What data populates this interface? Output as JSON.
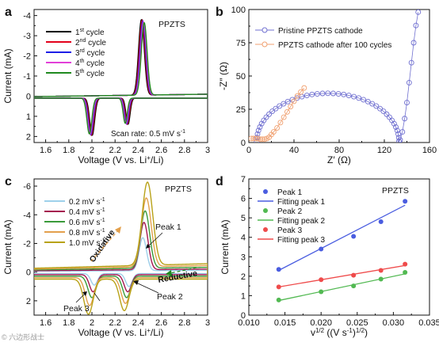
{
  "chart_data": [
    {
      "panel": "a",
      "type": "line",
      "xlabel": "Voltage (V vs. Li⁺/Li)",
      "ylabel": "Current (mA)",
      "xlim": [
        1.5,
        3.0
      ],
      "ylim": [
        2.3,
        -4.3
      ],
      "y_inverted": true,
      "xticks": [
        1.6,
        1.8,
        2.0,
        2.2,
        2.4,
        2.6,
        2.8,
        3.0
      ],
      "yticks": [
        -4,
        -3,
        -2,
        -1,
        0,
        1,
        2
      ],
      "tag": "PPZTS",
      "note": "Scan rate: 0.5 mV s⁻¹",
      "legend_position": "upper-left",
      "series": [
        {
          "name": "1st cycle",
          "name_base": "1",
          "name_sup": "st",
          "name_rest": " cycle",
          "color": "#000000"
        },
        {
          "name": "2nd cycle",
          "name_base": "2",
          "name_sup": "nd",
          "name_rest": " cycle",
          "color": "#e3001b"
        },
        {
          "name": "3rd cycle",
          "name_base": "3",
          "name_sup": "rd",
          "name_rest": " cycle",
          "color": "#1e1ee6"
        },
        {
          "name": "4th cycle",
          "name_base": "4",
          "name_sup": "th",
          "name_rest": " cycle",
          "color": "#e23fd8"
        },
        {
          "name": "5th cycle",
          "name_base": "5",
          "name_sup": "th",
          "name_rest": " cycle",
          "color": "#1f8a1f"
        }
      ],
      "cv_shape": {
        "base_charge": -0.05,
        "base_discharge": 0.1,
        "anodic_peaks": [
          {
            "x": 2.44,
            "y": -3.75,
            "w": 0.035
          }
        ],
        "cathodic_peaks": [
          {
            "x": 1.99,
            "y": 1.85,
            "w": 0.03
          },
          {
            "x": 2.3,
            "y": 1.3,
            "w": 0.025
          }
        ]
      }
    },
    {
      "panel": "b",
      "type": "scatter",
      "xlabel": "Z′ (Ω)",
      "ylabel": "-Z″ (Ω)",
      "xlim": [
        0,
        160
      ],
      "ylim": [
        0,
        100
      ],
      "xticks": [
        0,
        40,
        80,
        120,
        160
      ],
      "yticks": [
        0,
        25,
        50,
        75,
        100
      ],
      "legend_position": "upper-left",
      "series": [
        {
          "name": "Pristine PPZTS cathode",
          "color": "#7070d0",
          "semicircle": {
            "center": 70,
            "radius": 63,
            "height": 36,
            "n": 42
          },
          "tail": [
            [
              134,
              2
            ],
            [
              136,
              8
            ],
            [
              138,
              18
            ],
            [
              140,
              30
            ],
            [
              142,
              45
            ],
            [
              144,
              60
            ],
            [
              146,
              75
            ],
            [
              148,
              88
            ],
            [
              150,
              98
            ]
          ]
        },
        {
          "name": "PPZTS cathode after 100 cycles",
          "color": "#f0a070",
          "points": [
            [
              2,
              3
            ],
            [
              4,
              3
            ],
            [
              6,
              3
            ],
            [
              8,
              3
            ],
            [
              10,
              2.5
            ],
            [
              12,
              2.5
            ],
            [
              14,
              2.5
            ],
            [
              16,
              3
            ],
            [
              18,
              4
            ],
            [
              20,
              6
            ],
            [
              22,
              8
            ],
            [
              25,
              11
            ],
            [
              28,
              15
            ],
            [
              31,
              19
            ],
            [
              34,
              23
            ],
            [
              37,
              27
            ],
            [
              40,
              31
            ],
            [
              43,
              35
            ],
            [
              46,
              38
            ],
            [
              49,
              41
            ]
          ]
        }
      ]
    },
    {
      "panel": "c",
      "type": "line",
      "xlabel": "Voltage (V vs. Li⁺/Li)",
      "ylabel": "Current (mA)",
      "xlim": [
        1.5,
        3.0
      ],
      "ylim": [
        3.0,
        -6.5
      ],
      "y_inverted": true,
      "xticks": [
        1.6,
        1.8,
        2.0,
        2.2,
        2.4,
        2.6,
        2.8,
        3.0
      ],
      "yticks": [
        -6,
        -4,
        -2,
        0,
        2
      ],
      "tag": "PPZTS",
      "legend_position": "upper-left",
      "series": [
        {
          "name": "0.2 mV s⁻¹",
          "color": "#9ed0ea",
          "base": 0.15,
          "anodic": [
            {
              "x": 2.44,
              "y": -2.3
            }
          ],
          "cathodic": [
            {
              "x": 2.02,
              "y": 0.8
            },
            {
              "x": 2.32,
              "y": 0.9
            }
          ]
        },
        {
          "name": "0.4 mV s⁻¹",
          "color": "#a5174f",
          "base": 0.25,
          "anodic": [
            {
              "x": 2.45,
              "y": -3.3
            }
          ],
          "cathodic": [
            {
              "x": 2.01,
              "y": 1.2
            },
            {
              "x": 2.31,
              "y": 1.2
            }
          ]
        },
        {
          "name": "0.6 mV s⁻¹",
          "color": "#3a9a3a",
          "base": 0.4,
          "anodic": [
            {
              "x": 2.46,
              "y": -4.0
            }
          ],
          "cathodic": [
            {
              "x": 2.0,
              "y": 1.5
            },
            {
              "x": 2.3,
              "y": 1.5
            }
          ]
        },
        {
          "name": "0.8 mV s⁻¹",
          "color": "#e3a04c",
          "base": 0.55,
          "anodic": [
            {
              "x": 2.47,
              "y": -4.8
            }
          ],
          "cathodic": [
            {
              "x": 1.98,
              "y": 1.95
            },
            {
              "x": 2.29,
              "y": 1.8
            }
          ]
        },
        {
          "name": "1.0 mV s⁻¹",
          "color": "#b8a218",
          "base": 0.7,
          "anodic": [
            {
              "x": 2.48,
              "y": -5.8
            }
          ],
          "cathodic": [
            {
              "x": 1.97,
              "y": 2.45
            },
            {
              "x": 2.28,
              "y": 2.2
            }
          ]
        }
      ],
      "annotations": [
        {
          "text": "Peak 1"
        },
        {
          "text": "Peak 2"
        },
        {
          "text": "Peak 3"
        },
        {
          "text": "Oxidative",
          "color": "#e3a04c"
        },
        {
          "text": "Reductive",
          "color": "#1f8a1f"
        }
      ]
    },
    {
      "panel": "d",
      "type": "scatter",
      "xlabel": "v^1/2 ((V s⁻¹)^1/2)",
      "ylabel": "Current (mA)",
      "xlim": [
        0.01,
        0.035
      ],
      "ylim": [
        0,
        7
      ],
      "xticks": [
        0.01,
        0.015,
        0.02,
        0.025,
        0.03,
        0.035
      ],
      "xtick_labels": [
        "0.010",
        "0.015",
        "0.020",
        "0.025",
        "0.030",
        "0.035"
      ],
      "yticks": [
        0,
        1,
        2,
        3,
        4,
        5,
        6,
        7
      ],
      "tag": "PPZTS",
      "legend_position": "upper-left",
      "x": [
        0.01414,
        0.02,
        0.02449,
        0.02828,
        0.03162
      ],
      "series": [
        {
          "name": "Peak 1",
          "fit_name": "Fitting peak 1",
          "color": "#4a5de0",
          "values": [
            2.35,
            3.4,
            4.05,
            4.8,
            5.85
          ],
          "fit": [
            [
              0.01414,
              2.3
            ],
            [
              0.03162,
              5.65
            ]
          ]
        },
        {
          "name": "Peak 2",
          "fit_name": "Fitting peak 2",
          "color": "#52b952",
          "values": [
            0.78,
            1.2,
            1.5,
            1.85,
            2.2
          ],
          "fit": [
            [
              0.01414,
              0.75
            ],
            [
              0.03162,
              2.12
            ]
          ]
        },
        {
          "name": "Peak 3",
          "fit_name": "Fitting peak 3",
          "color": "#ef4b4b",
          "values": [
            1.45,
            1.82,
            2.05,
            2.3,
            2.62
          ],
          "fit": [
            [
              0.01414,
              1.45
            ],
            [
              0.03162,
              2.55
            ]
          ]
        }
      ]
    }
  ],
  "panel_labels": [
    "a",
    "b",
    "c",
    "d"
  ],
  "watermark": "© 六边形战士"
}
